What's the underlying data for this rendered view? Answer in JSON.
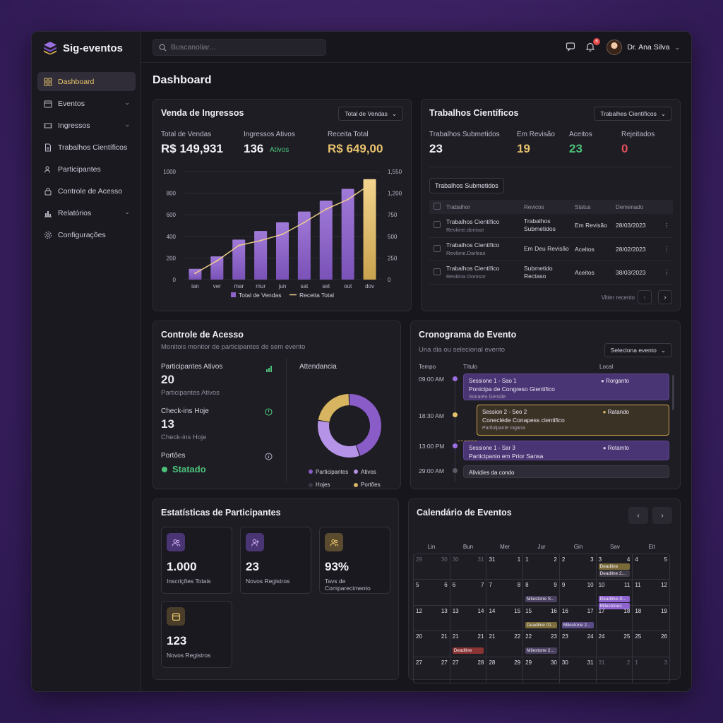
{
  "app": {
    "name": "Sig-eventos"
  },
  "sidebar": {
    "items": [
      {
        "label": "Dashboard",
        "icon": "grid-icon",
        "active": true
      },
      {
        "label": "Eventos",
        "icon": "calendar-icon",
        "chevron": true
      },
      {
        "label": "Ingressos",
        "icon": "ticket-icon",
        "chevron": true
      },
      {
        "label": "Trabalhos Científicos",
        "icon": "document-icon"
      },
      {
        "label": "Participantes",
        "icon": "users-icon"
      },
      {
        "label": "Controle de Acesso",
        "icon": "lock-icon"
      },
      {
        "label": "Relatórios",
        "icon": "bar-chart-icon",
        "chevron": true
      },
      {
        "label": "Configurações",
        "icon": "gear-icon"
      }
    ]
  },
  "topbar": {
    "search_placeholder": "Buscanoliar...",
    "notification_count": "6",
    "user_name": "Dr. Ana Silva"
  },
  "page": {
    "title": "Dashboard"
  },
  "sales": {
    "title": "Venda de Ingressos",
    "dropdown": "Total de Vendas",
    "kpis": [
      {
        "label": "Total de Vendas",
        "value": "R$ 149,931"
      },
      {
        "label": "Ingressos Ativos",
        "value": "136",
        "suffix": "Ativos"
      },
      {
        "label": "Receita Total",
        "value": "R$ 649,00"
      }
    ],
    "legend": [
      "Total de Vendas",
      "Receita Total"
    ]
  },
  "chart_data": {
    "type": "bar",
    "categories": [
      "ian",
      "ver",
      "mar",
      "mur",
      "jun",
      "sat",
      "set",
      "out",
      "dov"
    ],
    "series": [
      {
        "name": "Total de Vendas",
        "type": "bar",
        "values": [
          100,
          215,
          370,
          450,
          530,
          630,
          730,
          840,
          930
        ]
      },
      {
        "name": "Receita Total",
        "type": "line",
        "axis": "right",
        "values": [
          90,
          270,
          490,
          560,
          650,
          820,
          1010,
          1150,
          1360
        ]
      }
    ],
    "y_left": {
      "ticks": [
        "0",
        "200",
        "400",
        "600",
        "800",
        "1000"
      ],
      "lim": [
        0,
        1000
      ]
    },
    "y_right": {
      "ticks": [
        "0",
        "250",
        "500",
        "750",
        "1,200",
        "1,550"
      ],
      "lim": [
        0,
        1550
      ]
    },
    "colors": {
      "bar": "#8d62c9",
      "bar_highlight": "#e8c26e",
      "line": "#f2d08a"
    },
    "grid": true,
    "legend_position": "bottom"
  },
  "papers": {
    "title": "Trabalhos Científicos",
    "dropdown": "Trabalhes Científicos",
    "kpis": [
      {
        "label": "Trabalhos Submetidos",
        "value": "23",
        "color": "#f4f2f8"
      },
      {
        "label": "Em Revisão",
        "value": "19",
        "color": "#e6c26a"
      },
      {
        "label": "Aceitos",
        "value": "23",
        "color": "#4cc27a"
      },
      {
        "label": "Rejeitados",
        "value": "0",
        "color": "#e2505a"
      }
    ],
    "table_button": "Trabalhos Submetidos",
    "columns": [
      "Trabalhor",
      "Revicos",
      "Status",
      "Demenado"
    ],
    "rows": [
      {
        "title": "Trabalhos Científico",
        "sub": "Revkine.donisor",
        "rev": "Trabalhos Submetidos",
        "status": "Em Revisão",
        "date": "28/03/2023"
      },
      {
        "title": "Trabalhos Científico",
        "sub": "Revlone.Darleas",
        "rev": "Em Deu Revisão",
        "status": "Aceitos",
        "date": "28/02/2023"
      },
      {
        "title": "Trabalhos Científico",
        "sub": "Revkina Oomsor",
        "rev": "Submetido Rectaso",
        "status": "Aceitos",
        "date": "38/03/2023"
      }
    ],
    "footer": "Vitter recento"
  },
  "access": {
    "title": "Controle de Acesso",
    "subtitle": "Monitois monitor de participantes de sem evento",
    "stats": [
      {
        "label": "Participantes Ativos",
        "value": "20",
        "sub": "Participantes Ativos"
      },
      {
        "label": "Check-ins Hoje",
        "value": "13",
        "sub": "Check-ins Hoje"
      },
      {
        "label": "Portões",
        "value": "Statado"
      }
    ],
    "donut_title": "Attendancia",
    "donut": [
      {
        "name": "Participantes",
        "value": 45,
        "color": "#8a5cc8"
      },
      {
        "name": "Ativos",
        "value": 33,
        "color": "#b593e6"
      },
      {
        "name": "Hojes",
        "value": 0,
        "color": "#3a3844"
      },
      {
        "name": "Portões",
        "value": 22,
        "color": "#d6b460"
      }
    ]
  },
  "schedule": {
    "title": "Cronograma do Evento",
    "subtitle": "Una dia ou selecional evento",
    "dropdown": "Seleciona evento",
    "columns": [
      "Tempo",
      "Título",
      "Local"
    ],
    "items": [
      {
        "time": "09:00 AM",
        "l1": "Sessione 1 - Sao 1",
        "l2": "Ponicipa de Congreso Gientífico",
        "l3": "Sonaréo Gensile",
        "loc": "Rorganto",
        "style": "purple"
      },
      {
        "time": "18:30 AM",
        "l1": "Session 2 - Seo 2",
        "l2": "Conecléde Conapess cientifico",
        "l3": "Partlolpante Ingana",
        "loc": "Ratando",
        "style": "gold"
      },
      {
        "time": "13:00 PM",
        "l1": "Sessione 1 - Sar 3",
        "l2": "Participanio em Prior Sansa",
        "l3": "",
        "loc": "Rotamto",
        "style": "purple"
      },
      {
        "time": "29:00 AM",
        "l1": "Alividies da condo",
        "l2": "",
        "l3": "",
        "loc": "",
        "style": "gray"
      }
    ]
  },
  "participants": {
    "title": "Estatísticas de Participantes",
    "stats": [
      {
        "value": "1.000",
        "label": "Inscrições Totais",
        "icon": "users-icon"
      },
      {
        "value": "23",
        "label": "Novos Registros",
        "icon": "user-plus-icon"
      },
      {
        "value": "93%",
        "label": "Tavs de Comparecimento",
        "icon": "users-icon"
      },
      {
        "value": "123",
        "label": "Novos Registros",
        "icon": "calendar-icon"
      }
    ]
  },
  "calendar": {
    "title": "Calendário de Eventos",
    "weekdays": [
      "Lin",
      "Bun",
      "Mer",
      "Jur",
      "Gin",
      "Sav",
      "Eit"
    ],
    "weeks": [
      [
        [
          "29",
          "30",
          true
        ],
        [
          "30",
          "31",
          true
        ],
        [
          "31",
          "1",
          false
        ],
        [
          "1",
          "2",
          false
        ],
        [
          "2",
          "3",
          false
        ],
        [
          "3",
          "4",
          false
        ],
        [
          "4",
          "5",
          false
        ]
      ],
      [
        [
          "5",
          "6",
          false
        ],
        [
          "6",
          "7",
          false
        ],
        [
          "7",
          "8",
          false
        ],
        [
          "8",
          "9",
          false
        ],
        [
          "9",
          "10",
          false
        ],
        [
          "10",
          "11",
          false
        ],
        [
          "11",
          "12",
          false
        ]
      ],
      [
        [
          "12",
          "13",
          false
        ],
        [
          "13",
          "14",
          false
        ],
        [
          "14",
          "15",
          false
        ],
        [
          "15",
          "16",
          false
        ],
        [
          "16",
          "17",
          false
        ],
        [
          "17",
          "18",
          false
        ],
        [
          "18",
          "19",
          false
        ]
      ],
      [
        [
          "20",
          "21",
          false
        ],
        [
          "21",
          "21",
          false
        ],
        [
          "21",
          "22",
          false
        ],
        [
          "22",
          "23",
          false
        ],
        [
          "23",
          "24",
          false
        ],
        [
          "24",
          "25",
          false
        ],
        [
          "25",
          "26",
          false
        ]
      ],
      [
        [
          "27",
          "27",
          false
        ],
        [
          "27",
          "28",
          false
        ],
        [
          "28",
          "29",
          false
        ],
        [
          "29",
          "30",
          false
        ],
        [
          "30",
          "31",
          false
        ],
        [
          "31",
          "2",
          true
        ],
        [
          "1",
          "3",
          true
        ]
      ]
    ],
    "events": [
      {
        "label": "Deadline",
        "week": 0,
        "day": 5,
        "slot": 0,
        "color": "#7a6a38"
      },
      {
        "label": "Deadline 2...",
        "week": 0,
        "day": 5,
        "slot": 1,
        "color": "#3f3c48"
      },
      {
        "label": "Milestone S...",
        "week": 1,
        "day": 3,
        "slot": 1,
        "color": "#4a4060"
      },
      {
        "label": "Deadline-S...",
        "week": 1,
        "day": 5,
        "slot": 1,
        "color": "#8e64cf"
      },
      {
        "label": "Milestones",
        "week": 1,
        "day": 5,
        "slot": 2,
        "color": "#8e64cf"
      },
      {
        "label": "Deadline 01...",
        "week": 2,
        "day": 3,
        "slot": 1,
        "color": "#7a6a38"
      },
      {
        "label": "Milestone 2...",
        "week": 2,
        "day": 4,
        "slot": 1,
        "color": "#5a4a86"
      },
      {
        "label": "Deadline",
        "week": 3,
        "day": 1,
        "slot": 1,
        "color": "#8a3434"
      },
      {
        "label": "Milestone 2...",
        "week": 3,
        "day": 3,
        "slot": 1,
        "color": "#4a4060"
      }
    ]
  }
}
